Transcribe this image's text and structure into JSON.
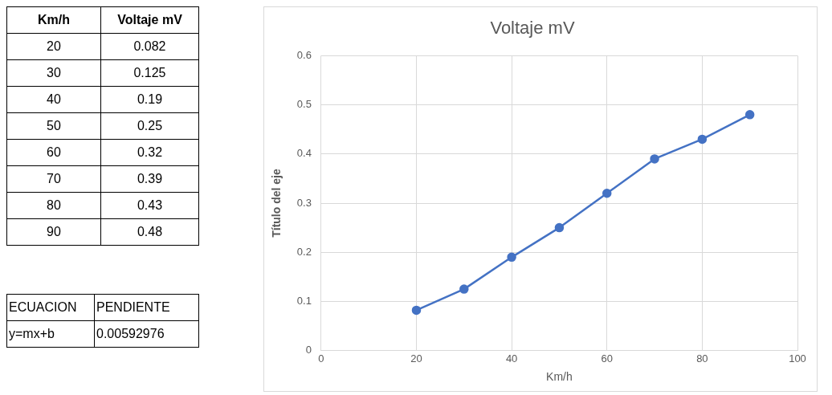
{
  "chart_data": {
    "type": "line",
    "title": "Voltaje mV",
    "xlabel": "Km/h",
    "ylabel": "Título del eje",
    "x": [
      20,
      30,
      40,
      50,
      60,
      70,
      80,
      90
    ],
    "series": [
      {
        "color": "#4472c4",
        "values": [
          0.082,
          0.125,
          0.19,
          0.25,
          0.32,
          0.39,
          0.43,
          0.48
        ]
      }
    ],
    "xlim": [
      0,
      100
    ],
    "xticks": [
      0,
      20,
      40,
      60,
      80,
      100
    ],
    "ylim": [
      0,
      0.6
    ],
    "yticks": [
      0,
      0.1,
      0.2,
      0.3,
      0.4,
      0.5,
      0.6
    ],
    "grid": true,
    "marker": "circle",
    "line_style": "solid",
    "annotations": [
      "20",
      "0.082",
      "30",
      "0.125",
      "40",
      "0.19",
      "50",
      "0.25",
      "60",
      "0.32",
      "70",
      "0.39",
      "80",
      "0.43",
      "90",
      "0.48",
      "ECUACION",
      "PENDIENTE",
      "y=mx+b",
      "0.00592976"
    ]
  }
}
